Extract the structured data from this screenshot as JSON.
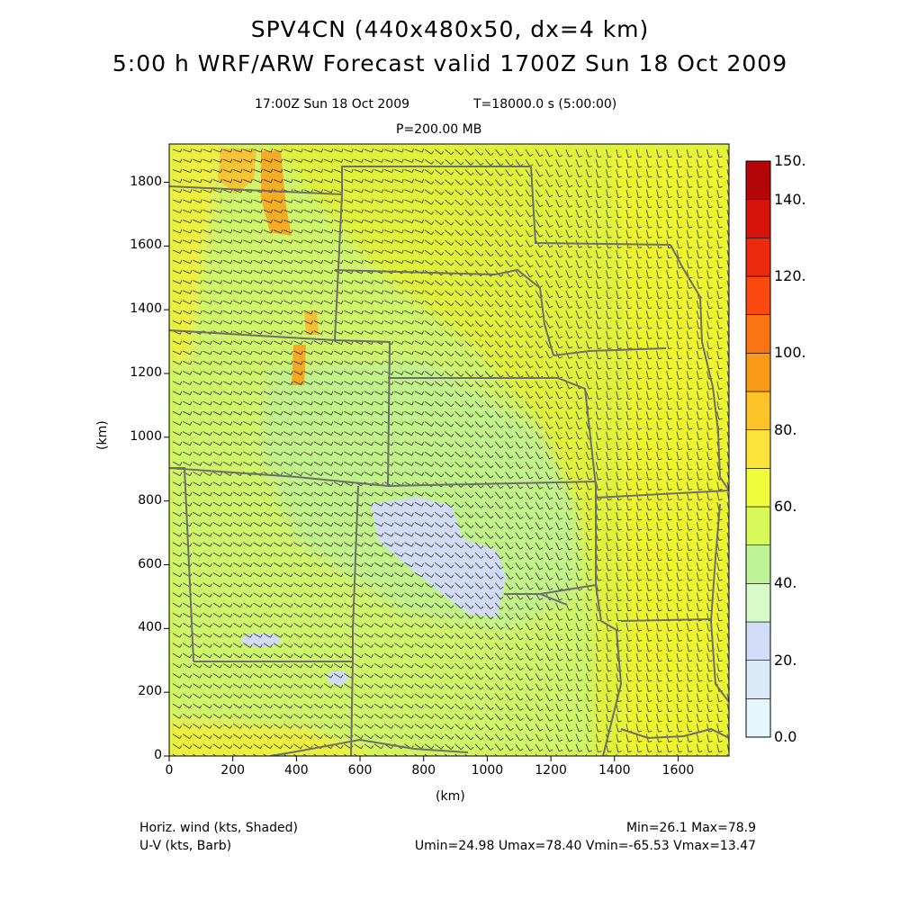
{
  "title": {
    "line1": "SPV4CN (440x480x50, dx=4 km)",
    "line2": "5:00 h WRF/ARW Forecast valid 1700Z Sun 18 Oct 2009"
  },
  "subtitle": {
    "time": "17:00Z Sun 18 Oct 2009",
    "elapsed": "T=18000.0 s (5:00:00)",
    "level": "P=200.00 MB"
  },
  "colors": {
    "background_field": "#dff23c",
    "band_light_green": "#b8f06a",
    "band_yellow": "#f0f02c",
    "band_orange": "#f5b51e",
    "band_low": "#d0dcf8",
    "state_lines": "#6e6e6e",
    "barbs": "#111111"
  },
  "chart_data": {
    "type": "heatmap",
    "xlabel": "(km)",
    "ylabel": "(km)",
    "xlim": [
      0,
      1760
    ],
    "ylim": [
      0,
      1920
    ],
    "x_ticks": [
      "0",
      "200",
      "400",
      "600",
      "800",
      "1000",
      "1200",
      "1400",
      "1600"
    ],
    "y_ticks": [
      "0",
      "200",
      "400",
      "600",
      "800",
      "1000",
      "1200",
      "1400",
      "1600",
      "1800"
    ],
    "colorbar": {
      "labels": [
        "0.0",
        "20.",
        "40.",
        "60.",
        "80.",
        "100.",
        "120.",
        "140.",
        "150."
      ],
      "bins": [
        {
          "from": 0,
          "to": 10,
          "color": "#e6f7fb"
        },
        {
          "from": 10,
          "to": 20,
          "color": "#dbeaf8"
        },
        {
          "from": 20,
          "to": 30,
          "color": "#d0dcf8"
        },
        {
          "from": 30,
          "to": 40,
          "color": "#d6fbc8"
        },
        {
          "from": 40,
          "to": 50,
          "color": "#bff496"
        },
        {
          "from": 50,
          "to": 60,
          "color": "#d9f95a"
        },
        {
          "from": 60,
          "to": 70,
          "color": "#eefc3c"
        },
        {
          "from": 70,
          "to": 80,
          "color": "#fde23c"
        },
        {
          "from": 80,
          "to": 90,
          "color": "#fdc328"
        },
        {
          "from": 90,
          "to": 100,
          "color": "#fb9a18"
        },
        {
          "from": 100,
          "to": 110,
          "color": "#fb7412"
        },
        {
          "from": 110,
          "to": 120,
          "color": "#fb4a10"
        },
        {
          "from": 120,
          "to": 130,
          "color": "#ee2a0e"
        },
        {
          "from": 130,
          "to": 140,
          "color": "#d6140c"
        },
        {
          "from": 140,
          "to": 150,
          "color": "#b40608"
        }
      ]
    }
  },
  "footer": {
    "left1": "Horiz. wind (kts, Shaded)",
    "left2": "U-V (kts, Barb)",
    "right1": "Min=26.1 Max=78.9",
    "right2": "Umin=24.98 Umax=78.40 Vmin=-65.53 Vmax=13.47"
  }
}
